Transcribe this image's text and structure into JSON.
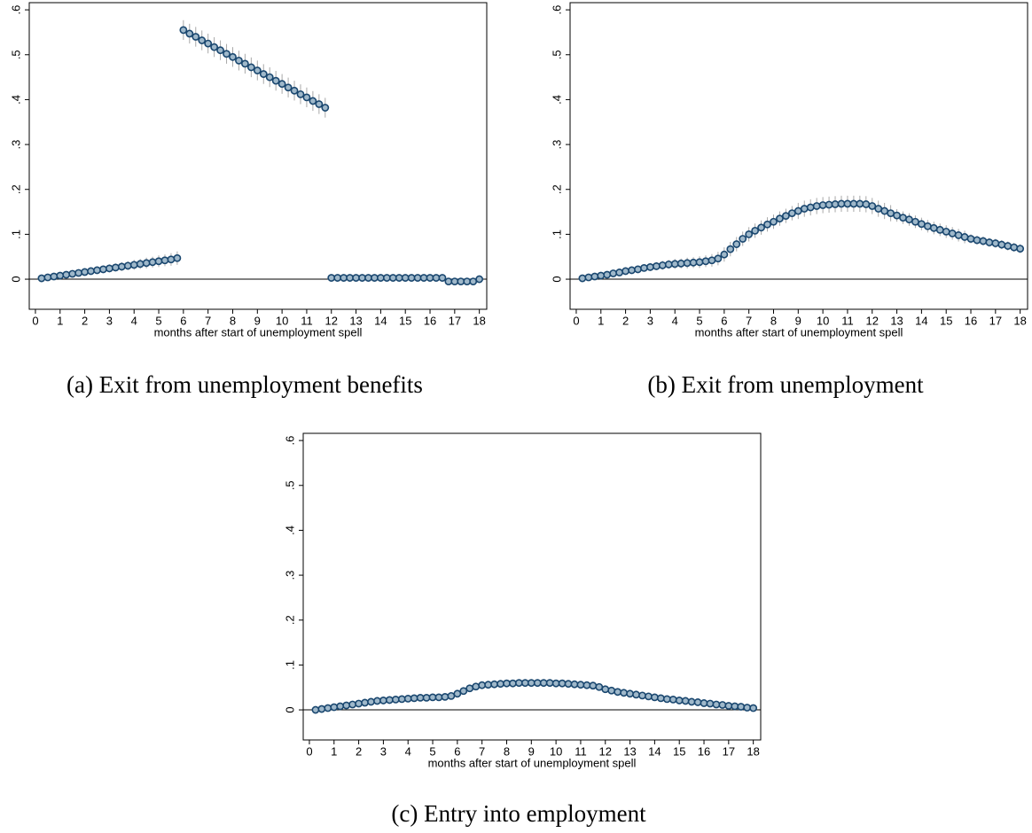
{
  "chart_data": [
    {
      "type": "scatter",
      "caption": "(a) Exit from unemployment benefits",
      "xlabel": "months after start of unemployment spell",
      "color": "#1a476f",
      "error_color": "#a8a8a8",
      "reference_line": 0,
      "xlim": [
        -0.25,
        18.3
      ],
      "ylim": [
        -0.067,
        0.616
      ],
      "xticks": [
        0,
        1,
        2,
        3,
        4,
        5,
        6,
        7,
        8,
        9,
        10,
        11,
        12,
        13,
        14,
        15,
        16,
        17,
        18
      ],
      "yticks": [
        0,
        {
          "value": 0.1,
          "label": ".1"
        },
        {
          "value": 0.2,
          "label": ".2"
        },
        {
          "value": 0.3,
          "label": ".3"
        },
        {
          "value": 0.4,
          "label": ".4"
        },
        {
          "value": 0.5,
          "label": ".5"
        },
        {
          "value": 0.6,
          "label": ".6"
        }
      ],
      "x": [
        0.25,
        0.5,
        0.75,
        1,
        1.25,
        1.5,
        1.75,
        2,
        2.25,
        2.5,
        2.75,
        3,
        3.25,
        3.5,
        3.75,
        4,
        4.25,
        4.5,
        4.75,
        5,
        5.25,
        5.5,
        5.75,
        6,
        6.25,
        6.5,
        6.75,
        7,
        7.25,
        7.5,
        7.75,
        8,
        8.25,
        8.5,
        8.75,
        9,
        9.25,
        9.5,
        9.75,
        10,
        10.25,
        10.5,
        10.75,
        11,
        11.25,
        11.5,
        11.75,
        12,
        12.25,
        12.5,
        12.75,
        13,
        13.25,
        13.5,
        13.75,
        14,
        14.25,
        14.5,
        14.75,
        15,
        15.25,
        15.5,
        15.75,
        16,
        16.25,
        16.5,
        16.75,
        17,
        17.25,
        17.5,
        17.75,
        18
      ],
      "values": [
        0.002,
        0.004,
        0.006,
        0.008,
        0.01,
        0.012,
        0.014,
        0.016,
        0.018,
        0.02,
        0.022,
        0.024,
        0.026,
        0.028,
        0.03,
        0.032,
        0.034,
        0.036,
        0.038,
        0.04,
        0.042,
        0.044,
        0.047,
        0.555,
        0.547,
        0.54,
        0.532,
        0.525,
        0.517,
        0.51,
        0.502,
        0.495,
        0.487,
        0.48,
        0.472,
        0.465,
        0.457,
        0.45,
        0.442,
        0.435,
        0.427,
        0.42,
        0.412,
        0.405,
        0.397,
        0.39,
        0.382,
        0.003,
        0.003,
        0.003,
        0.003,
        0.003,
        0.003,
        0.003,
        0.003,
        0.003,
        0.003,
        0.003,
        0.003,
        0.003,
        0.003,
        0.003,
        0.003,
        0.003,
        0.003,
        0.003,
        -0.005,
        -0.005,
        -0.005,
        -0.005,
        -0.005,
        0
      ],
      "errors": [
        0.003,
        0.004,
        0.004,
        0.005,
        0.005,
        0.006,
        0.006,
        0.007,
        0.007,
        0.008,
        0.008,
        0.009,
        0.009,
        0.01,
        0.01,
        0.011,
        0.011,
        0.012,
        0.012,
        0.013,
        0.013,
        0.014,
        0.015,
        0.022,
        0.022,
        0.022,
        0.022,
        0.022,
        0.022,
        0.022,
        0.022,
        0.022,
        0.022,
        0.022,
        0.022,
        0.022,
        0.022,
        0.022,
        0.022,
        0.022,
        0.022,
        0.022,
        0.022,
        0.022,
        0.022,
        0.022,
        0.022,
        0.003,
        0.003,
        0.003,
        0.003,
        0.003,
        0.003,
        0.003,
        0.003,
        0.003,
        0.003,
        0.003,
        0.003,
        0.003,
        0.003,
        0.003,
        0.003,
        0.003,
        0.003,
        0.003,
        0.003,
        0.003,
        0.003,
        0.003,
        0.003,
        0.003
      ]
    },
    {
      "type": "scatter",
      "caption": "(b) Exit from unemployment",
      "xlabel": "months after start of unemployment spell",
      "color": "#1a476f",
      "error_color": "#a8a8a8",
      "reference_line": 0,
      "xlim": [
        -0.25,
        18.3
      ],
      "ylim": [
        -0.067,
        0.616
      ],
      "xticks": [
        0,
        1,
        2,
        3,
        4,
        5,
        6,
        7,
        8,
        9,
        10,
        11,
        12,
        13,
        14,
        15,
        16,
        17,
        18
      ],
      "yticks": [
        0,
        {
          "value": 0.1,
          "label": ".1"
        },
        {
          "value": 0.2,
          "label": ".2"
        },
        {
          "value": 0.3,
          "label": ".3"
        },
        {
          "value": 0.4,
          "label": ".4"
        },
        {
          "value": 0.5,
          "label": ".5"
        },
        {
          "value": 0.6,
          "label": ".6"
        }
      ],
      "x": [
        0.25,
        0.5,
        0.75,
        1,
        1.25,
        1.5,
        1.75,
        2,
        2.25,
        2.5,
        2.75,
        3,
        3.25,
        3.5,
        3.75,
        4,
        4.25,
        4.5,
        4.75,
        5,
        5.25,
        5.5,
        5.75,
        6,
        6.25,
        6.5,
        6.75,
        7,
        7.25,
        7.5,
        7.75,
        8,
        8.25,
        8.5,
        8.75,
        9,
        9.25,
        9.5,
        9.75,
        10,
        10.25,
        10.5,
        10.75,
        11,
        11.25,
        11.5,
        11.75,
        12,
        12.25,
        12.5,
        12.75,
        13,
        13.25,
        13.5,
        13.75,
        14,
        14.25,
        14.5,
        14.75,
        15,
        15.25,
        15.5,
        15.75,
        16,
        16.25,
        16.5,
        16.75,
        17,
        17.25,
        17.5,
        17.75,
        18
      ],
      "values": [
        0.002,
        0.004,
        0.006,
        0.008,
        0.01,
        0.013,
        0.015,
        0.018,
        0.02,
        0.022,
        0.025,
        0.027,
        0.029,
        0.031,
        0.033,
        0.034,
        0.035,
        0.036,
        0.037,
        0.038,
        0.04,
        0.042,
        0.046,
        0.055,
        0.067,
        0.078,
        0.09,
        0.1,
        0.108,
        0.115,
        0.122,
        0.128,
        0.135,
        0.141,
        0.147,
        0.152,
        0.157,
        0.16,
        0.163,
        0.165,
        0.166,
        0.167,
        0.168,
        0.168,
        0.168,
        0.168,
        0.167,
        0.163,
        0.157,
        0.152,
        0.147,
        0.142,
        0.137,
        0.133,
        0.128,
        0.123,
        0.118,
        0.114,
        0.11,
        0.106,
        0.102,
        0.098,
        0.094,
        0.09,
        0.087,
        0.085,
        0.082,
        0.08,
        0.077,
        0.074,
        0.071,
        0.068
      ],
      "errors": [
        0.003,
        0.004,
        0.004,
        0.005,
        0.005,
        0.006,
        0.006,
        0.007,
        0.007,
        0.008,
        0.008,
        0.009,
        0.009,
        0.01,
        0.01,
        0.011,
        0.011,
        0.012,
        0.012,
        0.013,
        0.013,
        0.014,
        0.015,
        0.016,
        0.016,
        0.016,
        0.016,
        0.016,
        0.016,
        0.016,
        0.016,
        0.016,
        0.016,
        0.016,
        0.016,
        0.018,
        0.018,
        0.018,
        0.018,
        0.018,
        0.018,
        0.018,
        0.018,
        0.018,
        0.018,
        0.018,
        0.018,
        0.018,
        0.018,
        0.018,
        0.018,
        0.014,
        0.014,
        0.014,
        0.014,
        0.014,
        0.014,
        0.014,
        0.014,
        0.014,
        0.014,
        0.014,
        0.014,
        0.01,
        0.01,
        0.01,
        0.01,
        0.01,
        0.01,
        0.01,
        0.01,
        0.01
      ]
    },
    {
      "type": "scatter",
      "caption": "(c) Entry into employment",
      "xlabel": "months after start of unemployment spell",
      "color": "#1a476f",
      "error_color": "#a8a8a8",
      "reference_line": 0,
      "xlim": [
        -0.25,
        18.3
      ],
      "ylim": [
        -0.067,
        0.616
      ],
      "xticks": [
        0,
        1,
        2,
        3,
        4,
        5,
        6,
        7,
        8,
        9,
        10,
        11,
        12,
        13,
        14,
        15,
        16,
        17,
        18
      ],
      "yticks": [
        0,
        {
          "value": 0.1,
          "label": ".1"
        },
        {
          "value": 0.2,
          "label": ".2"
        },
        {
          "value": 0.3,
          "label": ".3"
        },
        {
          "value": 0.4,
          "label": ".4"
        },
        {
          "value": 0.5,
          "label": ".5"
        },
        {
          "value": 0.6,
          "label": ".6"
        }
      ],
      "x": [
        0.25,
        0.5,
        0.75,
        1,
        1.25,
        1.5,
        1.75,
        2,
        2.25,
        2.5,
        2.75,
        3,
        3.25,
        3.5,
        3.75,
        4,
        4.25,
        4.5,
        4.75,
        5,
        5.25,
        5.5,
        5.75,
        6,
        6.25,
        6.5,
        6.75,
        7,
        7.25,
        7.5,
        7.75,
        8,
        8.25,
        8.5,
        8.75,
        9,
        9.25,
        9.5,
        9.75,
        10,
        10.25,
        10.5,
        10.75,
        11,
        11.25,
        11.5,
        11.75,
        12,
        12.25,
        12.5,
        12.75,
        13,
        13.25,
        13.5,
        13.75,
        14,
        14.25,
        14.5,
        14.75,
        15,
        15.25,
        15.5,
        15.75,
        16,
        16.25,
        16.5,
        16.75,
        17,
        17.25,
        17.5,
        17.75,
        18
      ],
      "values": [
        0,
        0.002,
        0.004,
        0.006,
        0.008,
        0.01,
        0.012,
        0.014,
        0.016,
        0.018,
        0.02,
        0.021,
        0.022,
        0.023,
        0.024,
        0.025,
        0.026,
        0.027,
        0.027,
        0.028,
        0.028,
        0.029,
        0.031,
        0.036,
        0.042,
        0.048,
        0.052,
        0.055,
        0.056,
        0.057,
        0.058,
        0.059,
        0.059,
        0.06,
        0.06,
        0.06,
        0.06,
        0.06,
        0.06,
        0.059,
        0.059,
        0.058,
        0.057,
        0.056,
        0.055,
        0.054,
        0.051,
        0.046,
        0.043,
        0.04,
        0.038,
        0.036,
        0.034,
        0.032,
        0.03,
        0.028,
        0.026,
        0.024,
        0.023,
        0.021,
        0.02,
        0.018,
        0.017,
        0.015,
        0.014,
        0.012,
        0.011,
        0.009,
        0.008,
        0.007,
        0.005,
        0.004
      ],
      "errors": [
        0.003,
        0.003,
        0.003,
        0.003,
        0.003,
        0.003,
        0.003,
        0.003,
        0.003,
        0.003,
        0.003,
        0.003,
        0.003,
        0.003,
        0.003,
        0.003,
        0.003,
        0.003,
        0.003,
        0.003,
        0.003,
        0.003,
        0.003,
        0.003,
        0.008,
        0.008,
        0.008,
        0.008,
        0.008,
        0.008,
        0.008,
        0.008,
        0.008,
        0.008,
        0.008,
        0.008,
        0.008,
        0.008,
        0.008,
        0.008,
        0.008,
        0.008,
        0.008,
        0.008,
        0.008,
        0.008,
        0.008,
        0.008,
        0.006,
        0.006,
        0.006,
        0.006,
        0.006,
        0.006,
        0.006,
        0.006,
        0.006,
        0.006,
        0.006,
        0.006,
        0.006,
        0.006,
        0.006,
        0.006,
        0.006,
        0.006,
        0.006,
        0.006,
        0.006,
        0.006,
        0.006,
        0.006
      ]
    }
  ]
}
